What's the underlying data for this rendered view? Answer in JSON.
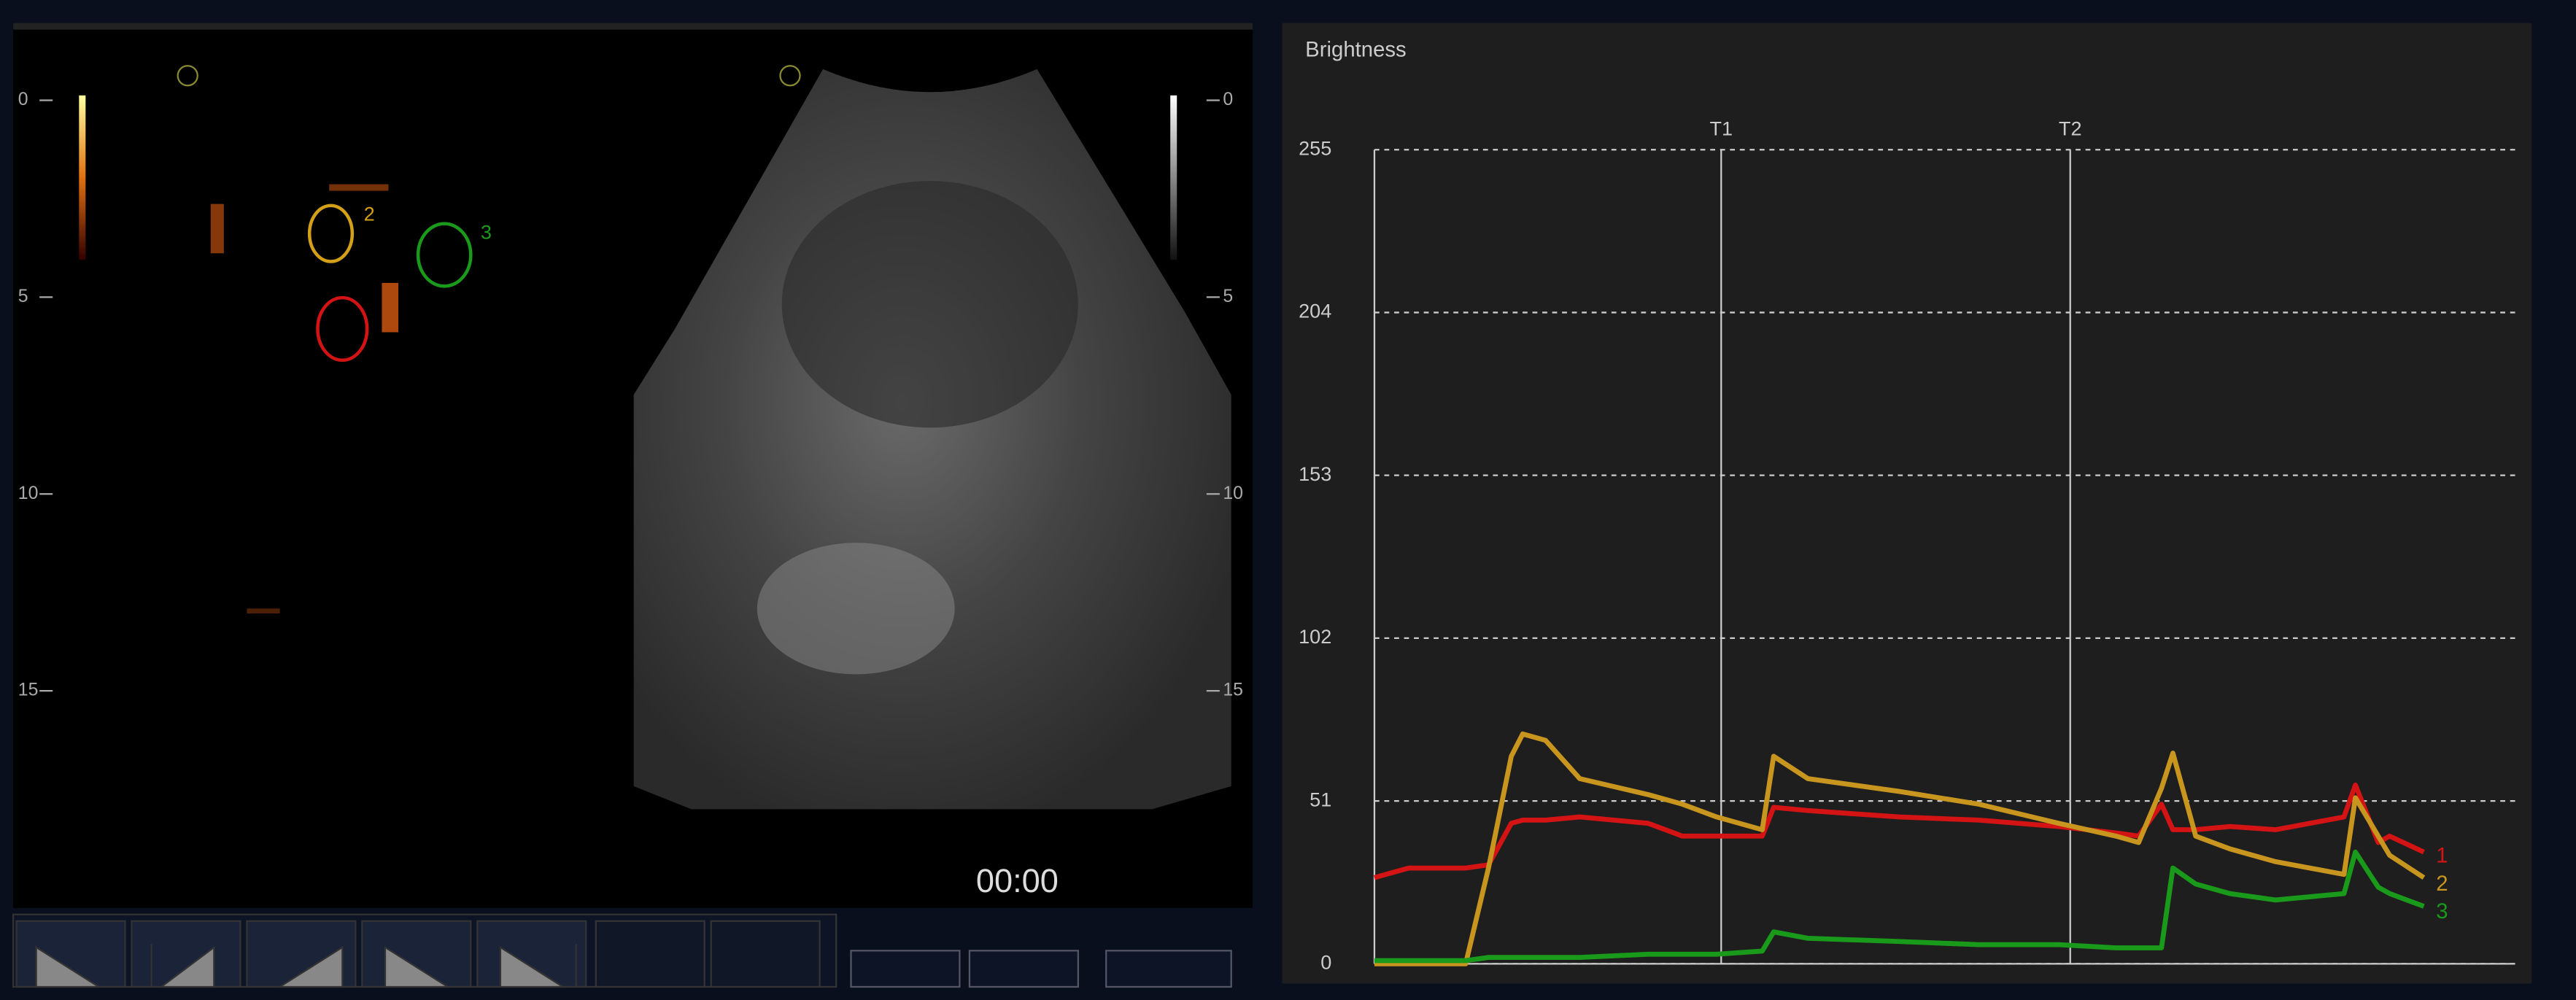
{
  "ultrasound": {
    "depth_ticks": [
      0,
      5,
      10,
      15
    ],
    "roi_labels": [
      "2",
      "3"
    ],
    "timer": "00:00"
  },
  "chart_data": {
    "type": "line",
    "title": "Brightness",
    "ylim": [
      0,
      255
    ],
    "yticks": [
      0,
      51,
      102,
      153,
      204,
      255
    ],
    "grid": true,
    "xlim": [
      0,
      100
    ],
    "x": [
      0,
      3,
      8,
      10,
      12,
      13,
      15,
      18,
      24,
      27,
      30,
      34,
      35,
      38,
      46,
      53,
      60,
      65,
      67,
      69,
      70,
      72,
      75,
      79,
      85,
      86,
      88,
      89,
      92
    ],
    "annotations": [
      {
        "label": "T1",
        "x": 30.4
      },
      {
        "label": "T2",
        "x": 61
      }
    ],
    "series": [
      {
        "name": "1",
        "color": "#d41414",
        "values": [
          27,
          30,
          30,
          31,
          44,
          45,
          45,
          46,
          44,
          40,
          40,
          40,
          49,
          48,
          46,
          45,
          43,
          41,
          40,
          50,
          42,
          42,
          43,
          42,
          46,
          56,
          38,
          40,
          35
        ]
      },
      {
        "name": "2",
        "color": "#c8961e",
        "values": [
          0,
          0,
          0,
          30,
          65,
          72,
          70,
          58,
          53,
          50,
          46,
          42,
          65,
          58,
          54,
          50,
          44,
          40,
          38,
          55,
          66,
          40,
          36,
          32,
          28,
          52,
          40,
          34,
          27
        ]
      },
      {
        "name": "3",
        "color": "#1a9a1a",
        "values": [
          1,
          1,
          1,
          2,
          2,
          2,
          2,
          2,
          3,
          3,
          3,
          4,
          10,
          8,
          7,
          6,
          6,
          5,
          5,
          5,
          30,
          25,
          22,
          20,
          22,
          35,
          24,
          22,
          18
        ]
      }
    ]
  }
}
